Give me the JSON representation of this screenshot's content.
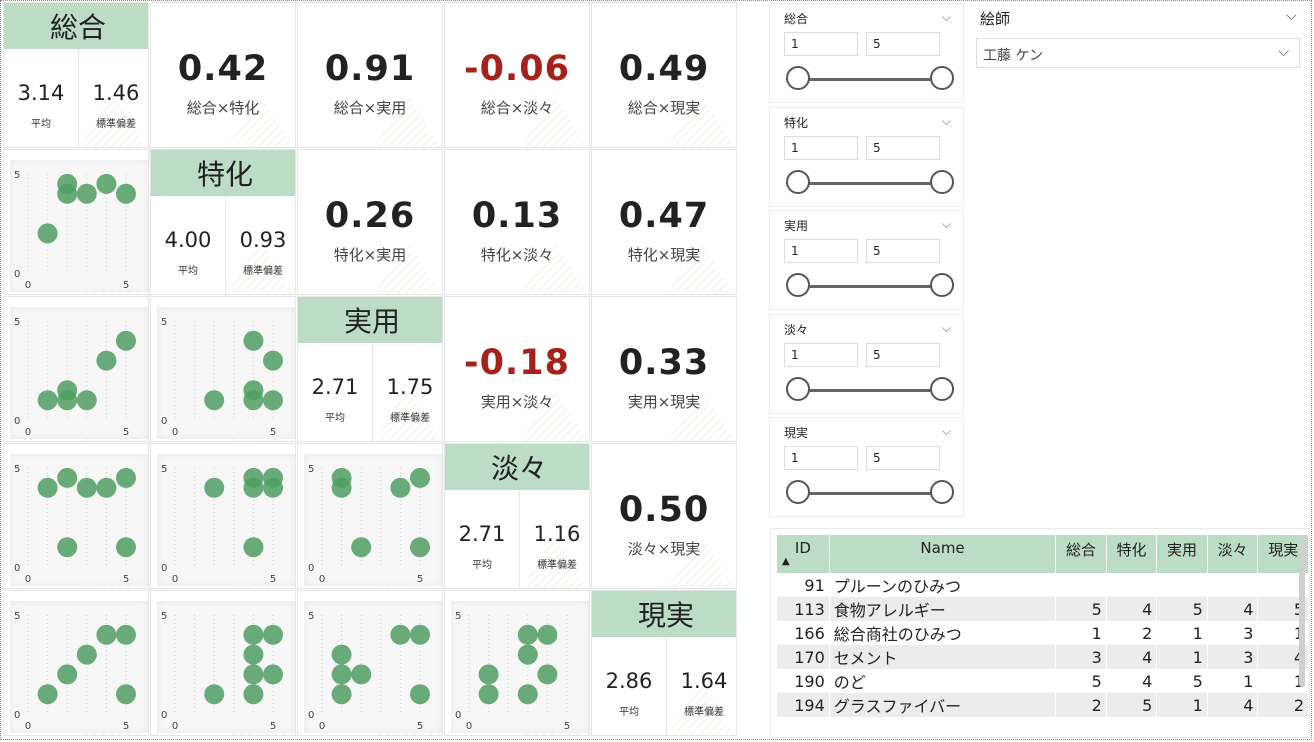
{
  "variables": [
    "総合",
    "特化",
    "実用",
    "淡々",
    "現実"
  ],
  "diagonal": [
    {
      "name": "総合",
      "mean": "3.14",
      "sd": "1.46"
    },
    {
      "name": "特化",
      "mean": "4.00",
      "sd": "0.93"
    },
    {
      "name": "実用",
      "mean": "2.71",
      "sd": "1.75"
    },
    {
      "name": "淡々",
      "mean": "2.71",
      "sd": "1.16"
    },
    {
      "name": "現実",
      "mean": "2.86",
      "sd": "1.64"
    }
  ],
  "stat_labels": {
    "mean": "平均",
    "sd": "標準偏差"
  },
  "correlations": [
    {
      "row": 0,
      "col": 1,
      "value": "0.42",
      "label": "総合×特化",
      "negative": false
    },
    {
      "row": 0,
      "col": 2,
      "value": "0.91",
      "label": "総合×実用",
      "negative": false
    },
    {
      "row": 0,
      "col": 3,
      "value": "-0.06",
      "label": "総合×淡々",
      "negative": true
    },
    {
      "row": 0,
      "col": 4,
      "value": "0.49",
      "label": "総合×現実",
      "negative": false
    },
    {
      "row": 1,
      "col": 2,
      "value": "0.26",
      "label": "特化×実用",
      "negative": false
    },
    {
      "row": 1,
      "col": 3,
      "value": "0.13",
      "label": "特化×淡々",
      "negative": false
    },
    {
      "row": 1,
      "col": 4,
      "value": "0.47",
      "label": "特化×現実",
      "negative": false
    },
    {
      "row": 2,
      "col": 3,
      "value": "-0.18",
      "label": "実用×淡々",
      "negative": true
    },
    {
      "row": 2,
      "col": 4,
      "value": "0.33",
      "label": "実用×現実",
      "negative": false
    },
    {
      "row": 3,
      "col": 4,
      "value": "0.50",
      "label": "淡々×現実",
      "negative": false
    }
  ],
  "chart_data": [
    {
      "type": "scatter",
      "row": 1,
      "col": 0,
      "xlim": [
        0,
        5
      ],
      "ylim": [
        0,
        5
      ],
      "x_ticks": [
        "0",
        "5"
      ],
      "y_ticks": [
        "0",
        "5"
      ],
      "points": [
        [
          1,
          2
        ],
        [
          2,
          4.5
        ],
        [
          2,
          4
        ],
        [
          3,
          4
        ],
        [
          4,
          4.5
        ],
        [
          5,
          4
        ]
      ]
    },
    {
      "type": "scatter",
      "row": 2,
      "col": 0,
      "xlim": [
        0,
        5
      ],
      "ylim": [
        0,
        5
      ],
      "x_ticks": [
        "0",
        "5"
      ],
      "y_ticks": [
        "0",
        "5"
      ],
      "points": [
        [
          1,
          1
        ],
        [
          2,
          1.5
        ],
        [
          2,
          1
        ],
        [
          3,
          1
        ],
        [
          4,
          3
        ],
        [
          5,
          4
        ]
      ]
    },
    {
      "type": "scatter",
      "row": 2,
      "col": 1,
      "xlim": [
        0,
        5
      ],
      "ylim": [
        0,
        5
      ],
      "x_ticks": [
        "0",
        "5"
      ],
      "y_ticks": [
        "0",
        "5"
      ],
      "points": [
        [
          2,
          1
        ],
        [
          4,
          4
        ],
        [
          4,
          1.5
        ],
        [
          4,
          1
        ],
        [
          5,
          3
        ],
        [
          5,
          1
        ]
      ]
    },
    {
      "type": "scatter",
      "row": 3,
      "col": 0,
      "xlim": [
        0,
        5
      ],
      "ylim": [
        0,
        5
      ],
      "x_ticks": [
        "0",
        "5"
      ],
      "y_ticks": [
        "0",
        "5"
      ],
      "points": [
        [
          1,
          4
        ],
        [
          2,
          4.5
        ],
        [
          3,
          4
        ],
        [
          4,
          4
        ],
        [
          5,
          4.5
        ],
        [
          2,
          1
        ],
        [
          5,
          1
        ]
      ]
    },
    {
      "type": "scatter",
      "row": 3,
      "col": 1,
      "xlim": [
        0,
        5
      ],
      "ylim": [
        0,
        5
      ],
      "x_ticks": [
        "0",
        "5"
      ],
      "y_ticks": [
        "0",
        "5"
      ],
      "points": [
        [
          2,
          4
        ],
        [
          4,
          4.5
        ],
        [
          5,
          4.5
        ],
        [
          4,
          4
        ],
        [
          5,
          4
        ],
        [
          4,
          1
        ]
      ]
    },
    {
      "type": "scatter",
      "row": 3,
      "col": 2,
      "xlim": [
        0,
        5
      ],
      "ylim": [
        0,
        5
      ],
      "x_ticks": [
        "0",
        "5"
      ],
      "y_ticks": [
        "0",
        "5"
      ],
      "points": [
        [
          1,
          4.5
        ],
        [
          1,
          4
        ],
        [
          2,
          1
        ],
        [
          4,
          4
        ],
        [
          5,
          4.5
        ],
        [
          5,
          1
        ]
      ]
    },
    {
      "type": "scatter",
      "row": 4,
      "col": 0,
      "xlim": [
        0,
        5
      ],
      "ylim": [
        0,
        5
      ],
      "x_ticks": [
        "0",
        "5"
      ],
      "y_ticks": [
        "0",
        "5"
      ],
      "points": [
        [
          1,
          1
        ],
        [
          2,
          2
        ],
        [
          3,
          3
        ],
        [
          4,
          4
        ],
        [
          5,
          4
        ],
        [
          5,
          1
        ]
      ]
    },
    {
      "type": "scatter",
      "row": 4,
      "col": 1,
      "xlim": [
        0,
        5
      ],
      "ylim": [
        0,
        5
      ],
      "x_ticks": [
        "0",
        "5"
      ],
      "y_ticks": [
        "0",
        "5"
      ],
      "points": [
        [
          2,
          1
        ],
        [
          4,
          4
        ],
        [
          4,
          3
        ],
        [
          4,
          2
        ],
        [
          4,
          1
        ],
        [
          5,
          4
        ],
        [
          5,
          2
        ]
      ]
    },
    {
      "type": "scatter",
      "row": 4,
      "col": 2,
      "xlim": [
        0,
        5
      ],
      "ylim": [
        0,
        5
      ],
      "x_ticks": [
        "0",
        "5"
      ],
      "y_ticks": [
        "0",
        "5"
      ],
      "points": [
        [
          1,
          3
        ],
        [
          1,
          2
        ],
        [
          1,
          1
        ],
        [
          2,
          2
        ],
        [
          4,
          4
        ],
        [
          5,
          4
        ],
        [
          5,
          1
        ]
      ]
    },
    {
      "type": "scatter",
      "row": 4,
      "col": 3,
      "xlim": [
        0,
        5
      ],
      "ylim": [
        0,
        5
      ],
      "x_ticks": [
        "0",
        "5"
      ],
      "y_ticks": [
        "0",
        "5"
      ],
      "points": [
        [
          1,
          2
        ],
        [
          1,
          1
        ],
        [
          3,
          4
        ],
        [
          3,
          3
        ],
        [
          4,
          4
        ],
        [
          4,
          2
        ],
        [
          3,
          1
        ]
      ]
    }
  ],
  "slicers": [
    {
      "title": "総合",
      "min": "1",
      "max": "5"
    },
    {
      "title": "特化",
      "min": "1",
      "max": "5"
    },
    {
      "title": "実用",
      "min": "1",
      "max": "5"
    },
    {
      "title": "淡々",
      "min": "1",
      "max": "5"
    },
    {
      "title": "現実",
      "min": "1",
      "max": "5"
    }
  ],
  "artist_filter": {
    "label": "絵師",
    "selected": "工藤 ケン"
  },
  "table": {
    "columns": [
      "ID",
      "Name",
      "総合",
      "特化",
      "実用",
      "淡々",
      "現実"
    ],
    "rows": [
      [
        "91",
        "プルーンのひみつ",
        "",
        "",
        "",
        "",
        ""
      ],
      [
        "113",
        "食物アレルギー",
        "5",
        "4",
        "5",
        "4",
        "5"
      ],
      [
        "166",
        "総合商社のひみつ",
        "1",
        "2",
        "1",
        "3",
        "1"
      ],
      [
        "170",
        "セメント",
        "3",
        "4",
        "1",
        "3",
        "4"
      ],
      [
        "190",
        "のど",
        "5",
        "4",
        "5",
        "1",
        "1"
      ],
      [
        "194",
        "グラスファイバー",
        "2",
        "5",
        "1",
        "4",
        "2"
      ]
    ]
  },
  "colors": {
    "header_green": "#bcdcc5",
    "point_green": "#4f9e62",
    "negative_red": "#a8201a"
  }
}
